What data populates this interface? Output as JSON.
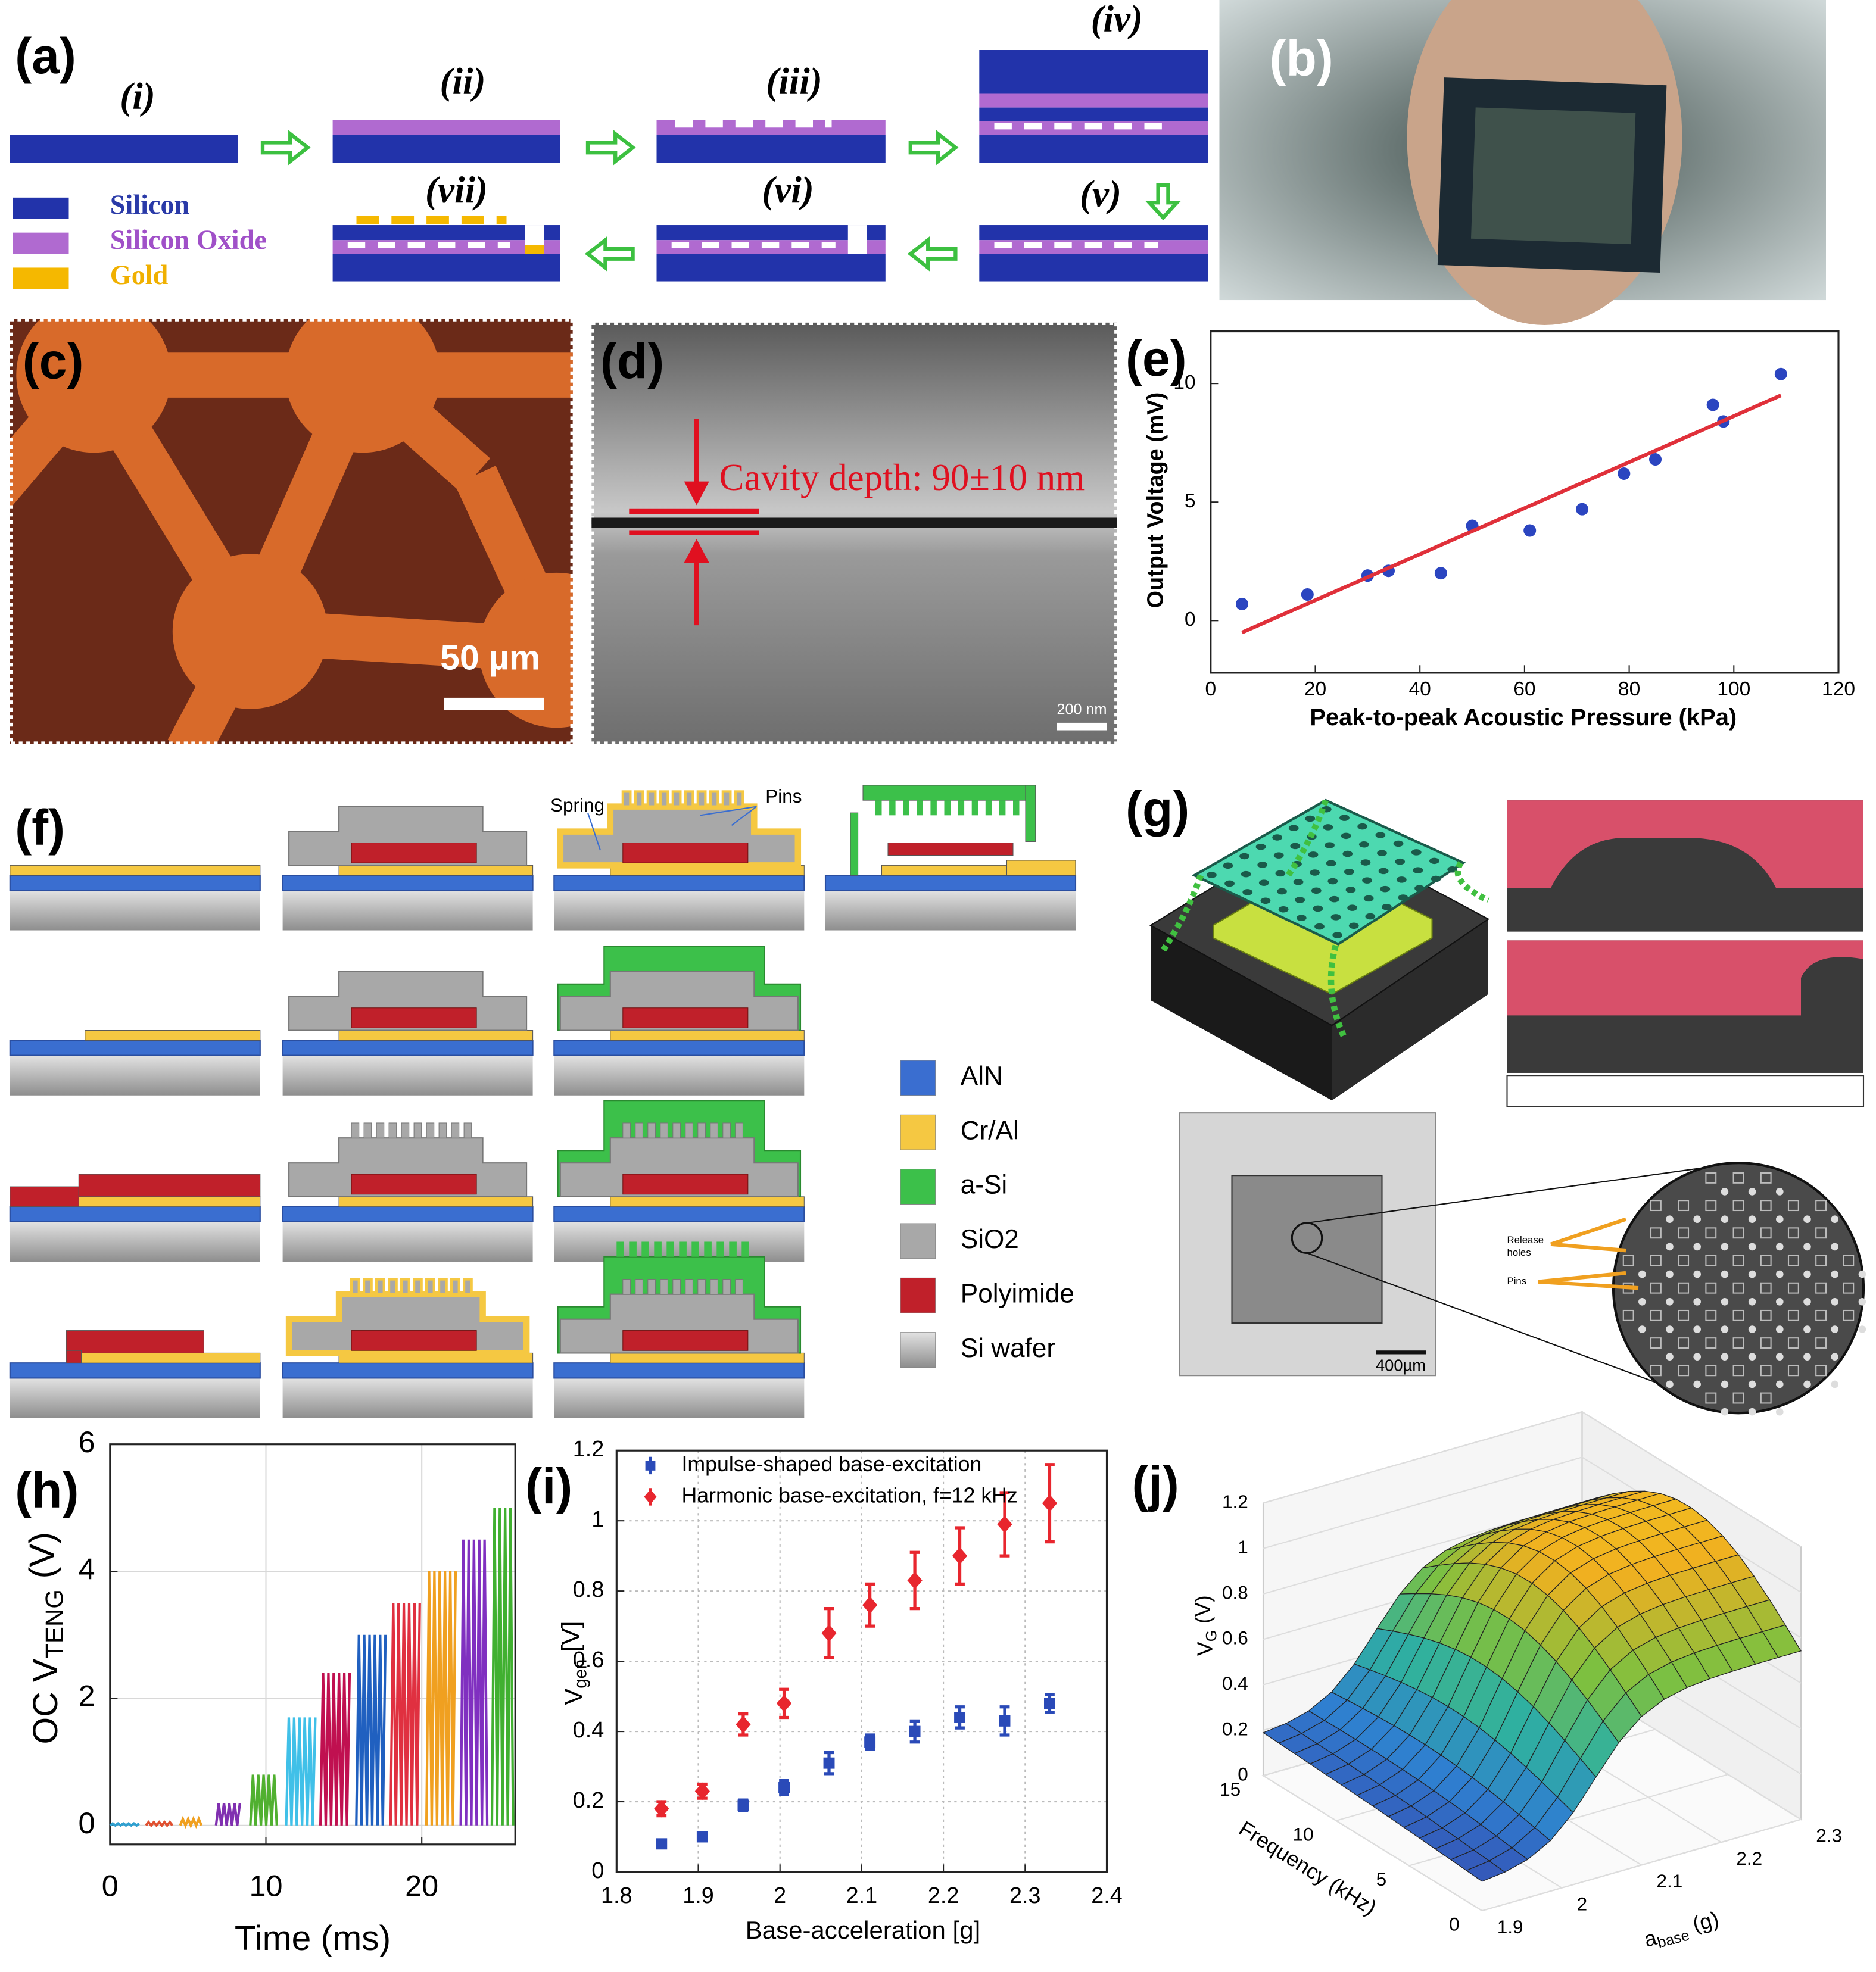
{
  "figure": {
    "a": {
      "label": "(a)",
      "steps": [
        "(i)",
        "(ii)",
        "(iii)",
        "(iv)",
        "(v)",
        "(vi)",
        "(vii)"
      ],
      "legend": [
        "Silicon",
        "Silicon Oxide",
        "Gold"
      ]
    },
    "b": {
      "label": "(b)"
    },
    "c": {
      "label": "(c)",
      "scale_bar": "50 µm"
    },
    "d": {
      "label": "(d)",
      "annotation": "Cavity depth: 90±10 nm",
      "scale_bar": "200 nm"
    },
    "f": {
      "label": "(f)",
      "callouts": [
        "Spring",
        "Pins"
      ],
      "legend": [
        "AlN",
        "Cr/Al",
        "a-Si",
        "SiO2",
        "Polyimide",
        "Si wafer"
      ]
    },
    "g": {
      "label": "(g)",
      "release_callout": [
        "Release",
        "holes"
      ],
      "pins_callout": "Pins",
      "scale_bar": "400µm"
    }
  },
  "chart_data": [
    {
      "type": "scatter",
      "panel_label": "(e)",
      "xlabel": "Peak-to-peak Acoustic Pressure (kPa)",
      "ylabel": "Output Voltage (mV)",
      "xlim": [
        0,
        120
      ],
      "ylim": [
        -2.2,
        12.2
      ],
      "xticks": [
        0,
        20,
        40,
        60,
        80,
        100,
        120
      ],
      "yticks": [
        0,
        5,
        10
      ],
      "series": [
        {
          "color": "#2b45c0",
          "x": [
            6,
            18.5,
            30,
            34,
            44,
            50,
            61,
            71,
            79,
            85,
            96,
            98,
            109
          ],
          "values": [
            0.7,
            1.1,
            1.9,
            2.1,
            2.0,
            4.0,
            3.8,
            4.7,
            6.2,
            6.8,
            9.1,
            8.4,
            10.4
          ]
        },
        {
          "style": "line",
          "color": "#e0303a",
          "x": [
            6,
            109
          ],
          "values": [
            -0.5,
            9.5
          ]
        }
      ]
    },
    {
      "type": "burst",
      "panel_label": "(h)",
      "xlabel": "Time (ms)",
      "ylabel": [
        "OC V",
        "TENG",
        "(V)"
      ],
      "xlim": [
        0,
        26
      ],
      "ylim": [
        -0.3,
        6
      ],
      "xticks": [
        0,
        10,
        20
      ],
      "yticks": [
        0,
        2,
        4,
        6
      ],
      "grid": true,
      "x": [
        0,
        2.3,
        4.5,
        6.8,
        9,
        11.3,
        13.5,
        15.8,
        18,
        20.3,
        22.5,
        24.5
      ],
      "x_end": [
        2,
        4,
        6,
        8.4,
        10.8,
        13.2,
        15.5,
        17.8,
        20,
        22.3,
        24.3,
        26
      ],
      "values": [
        0.03,
        0.05,
        0.1,
        0.35,
        0.8,
        1.7,
        2.4,
        3.0,
        3.5,
        4.0,
        4.5,
        5.0
      ],
      "colors": [
        "#30a0d0",
        "#e05030",
        "#f0a020",
        "#8030b0",
        "#50b030",
        "#40c0e8",
        "#c01050",
        "#2060c0",
        "#e03040",
        "#f0a020",
        "#8030c0",
        "#40b030"
      ]
    },
    {
      "type": "errorbar",
      "panel_label": "(i)",
      "xlabel": "Base-acceleration [g]",
      "ylabel": [
        "V",
        "gen",
        "[V]"
      ],
      "xlim": [
        1.8,
        2.4
      ],
      "ylim": [
        0,
        1.2
      ],
      "xticks": [
        1.8,
        1.9,
        2,
        2.1,
        2.2,
        2.3,
        2.4
      ],
      "yticks": [
        0,
        0.2,
        0.4,
        0.6,
        0.8,
        1,
        1.2
      ],
      "grid": true,
      "legend": "upper left",
      "series": [
        {
          "name": "Impulse-shaped base-excitation",
          "color": "#2a4ab8",
          "marker": "square",
          "x": [
            1.855,
            1.905,
            1.955,
            2.005,
            2.06,
            2.11,
            2.165,
            2.22,
            2.275,
            2.33
          ],
          "values": [
            0.08,
            0.1,
            0.19,
            0.24,
            0.31,
            0.37,
            0.4,
            0.44,
            0.43,
            0.48
          ],
          "errors": [
            0.01,
            0.01,
            0.015,
            0.02,
            0.03,
            0.02,
            0.03,
            0.03,
            0.04,
            0.025
          ]
        },
        {
          "name": "Harmonic base-excitation, f=12 kHz",
          "color": "#e8262e",
          "marker": "diamond",
          "x": [
            1.855,
            1.905,
            1.955,
            2.005,
            2.06,
            2.11,
            2.165,
            2.22,
            2.275,
            2.33
          ],
          "values": [
            0.18,
            0.23,
            0.42,
            0.48,
            0.68,
            0.76,
            0.83,
            0.9,
            0.99,
            1.05
          ],
          "errors": [
            0.02,
            0.02,
            0.03,
            0.04,
            0.07,
            0.06,
            0.08,
            0.08,
            0.09,
            0.11
          ]
        }
      ]
    },
    {
      "type": "surface",
      "panel_label": "(j)",
      "zlabel": [
        "V",
        "G",
        "(V)"
      ],
      "ylabel": "Frequency (kHz)",
      "xlabel": [
        "a",
        "base",
        "(g)"
      ],
      "xlim": [
        1.9,
        2.3
      ],
      "xticks": [
        1.9,
        2,
        2.1,
        2.2,
        2.3
      ],
      "ylim": [
        0,
        15
      ],
      "yticks": [
        0,
        5,
        10,
        15
      ],
      "zlim": [
        0,
        1.2
      ],
      "zticks": [
        0,
        0.2,
        0.4,
        0.6,
        0.8,
        1,
        1.2
      ],
      "grid": true
    }
  ]
}
